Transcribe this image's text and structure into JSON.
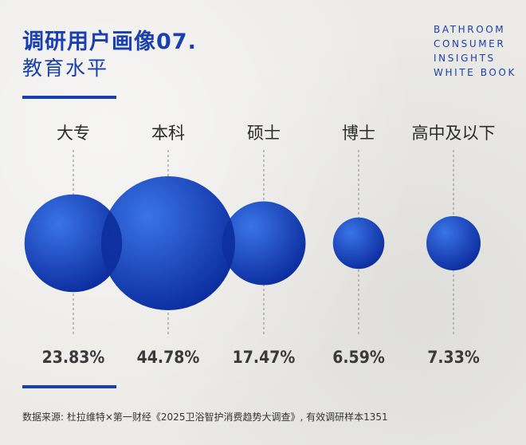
{
  "header": {
    "title": "调研用户画像07.",
    "subtitle": "教育水平"
  },
  "brand": {
    "lines": [
      "BATHROOM",
      "CONSUMER",
      "INSIGHTS",
      "WHITE BOOK"
    ]
  },
  "footnote": "数据来源: 杜拉维特×第一财经《2025卫浴智护消费趋势大调查》, 有效调研样本1351",
  "colors": {
    "accent": "#1a3fae",
    "bubble_light": "#2e63d6",
    "bubble_dark": "#0a2a9a"
  },
  "chart_data": {
    "type": "bubble",
    "categories": [
      "大专",
      "本科",
      "硕士",
      "博士",
      "高中及以下"
    ],
    "values": [
      23.83,
      44.78,
      17.47,
      6.59,
      7.33
    ],
    "value_labels": [
      "23.83%",
      "44.78%",
      "17.47%",
      "6.59%",
      "7.33%"
    ],
    "unit": "%"
  }
}
